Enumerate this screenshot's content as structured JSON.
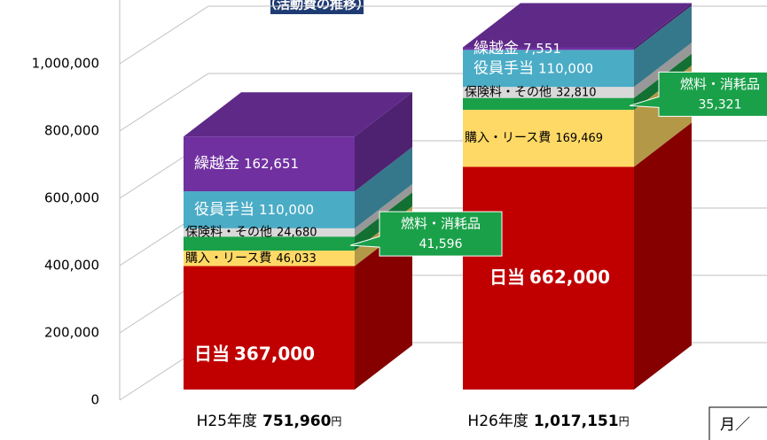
{
  "chart_data": {
    "type": "bar3d_stacked",
    "title": "（活動費の推移）",
    "categories": [
      "H25年度",
      "H26年度"
    ],
    "totals": [
      751960,
      1017151
    ],
    "total_labels": [
      "751,960",
      "1,017,151"
    ],
    "unit": "円",
    "series": [
      {
        "name": "日当",
        "color": "#c00000",
        "values": [
          367000,
          662000
        ],
        "value_labels": [
          "367,000",
          "662,000"
        ]
      },
      {
        "name": "購入・リース費",
        "color": "#ffd966",
        "values": [
          46033,
          169469
        ],
        "value_labels": [
          "46,033",
          "169,469"
        ]
      },
      {
        "name": "燃料・消耗品",
        "color": "#1aa049",
        "values": [
          41596,
          35321
        ],
        "value_labels": [
          "41,596",
          "35,321"
        ]
      },
      {
        "name": "保険料・その他",
        "color": "#d9d9d9",
        "values": [
          24680,
          32810
        ],
        "value_labels": [
          "24,680",
          "32,810"
        ]
      },
      {
        "name": "役員手当",
        "color": "#4bacc6",
        "values": [
          110000,
          110000
        ],
        "value_labels": [
          "110,000",
          "110,000"
        ]
      },
      {
        "name": "繰越金",
        "color": "#7030a0",
        "values": [
          162651,
          7551
        ],
        "value_labels": [
          "162,651",
          "7,551"
        ]
      }
    ],
    "ylim": [
      0,
      1200000
    ],
    "yticks": [
      0,
      {
        "value": 200000,
        "label": "200,000"
      },
      {
        "value": 400000,
        "label": "400,000"
      },
      {
        "value": 600000,
        "label": "600,000"
      },
      {
        "value": 800000,
        "label": "800,000"
      },
      {
        "value": 1000000,
        "label": "1,000,000"
      }
    ],
    "grid": true,
    "note": "月／"
  }
}
